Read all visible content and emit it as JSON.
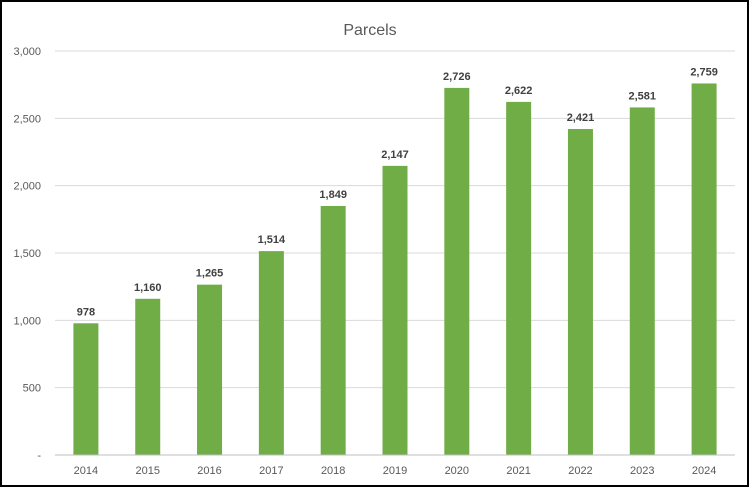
{
  "chart_data": {
    "type": "bar",
    "title": "Parcels",
    "xlabel": "",
    "ylabel": "",
    "categories": [
      "2014",
      "2015",
      "2016",
      "2017",
      "2018",
      "2019",
      "2020",
      "2021",
      "2022",
      "2023",
      "2024"
    ],
    "values": [
      978,
      1160,
      1265,
      1514,
      1849,
      2147,
      2726,
      2622,
      2421,
      2581,
      2759
    ],
    "data_labels": [
      "978",
      "1,160",
      "1,265",
      "1,514",
      "1,849",
      "2,147",
      "2,726",
      "2,622",
      "2,421",
      "2,581",
      "2,759"
    ],
    "ylim": [
      0,
      3000
    ],
    "y_ticks": [
      {
        "value": 0,
        "label": "-"
      },
      {
        "value": 500,
        "label": "500"
      },
      {
        "value": 1000,
        "label": "1,000"
      },
      {
        "value": 1500,
        "label": "1,500"
      },
      {
        "value": 2000,
        "label": "2,000"
      },
      {
        "value": 2500,
        "label": "2,500"
      },
      {
        "value": 3000,
        "label": "3,000"
      }
    ],
    "grid": true,
    "legend": "none",
    "bar_color": "#70ad47",
    "grid_color": "#d9d9d9",
    "axis_color": "#bfbfbf",
    "border_color": "#000000"
  }
}
